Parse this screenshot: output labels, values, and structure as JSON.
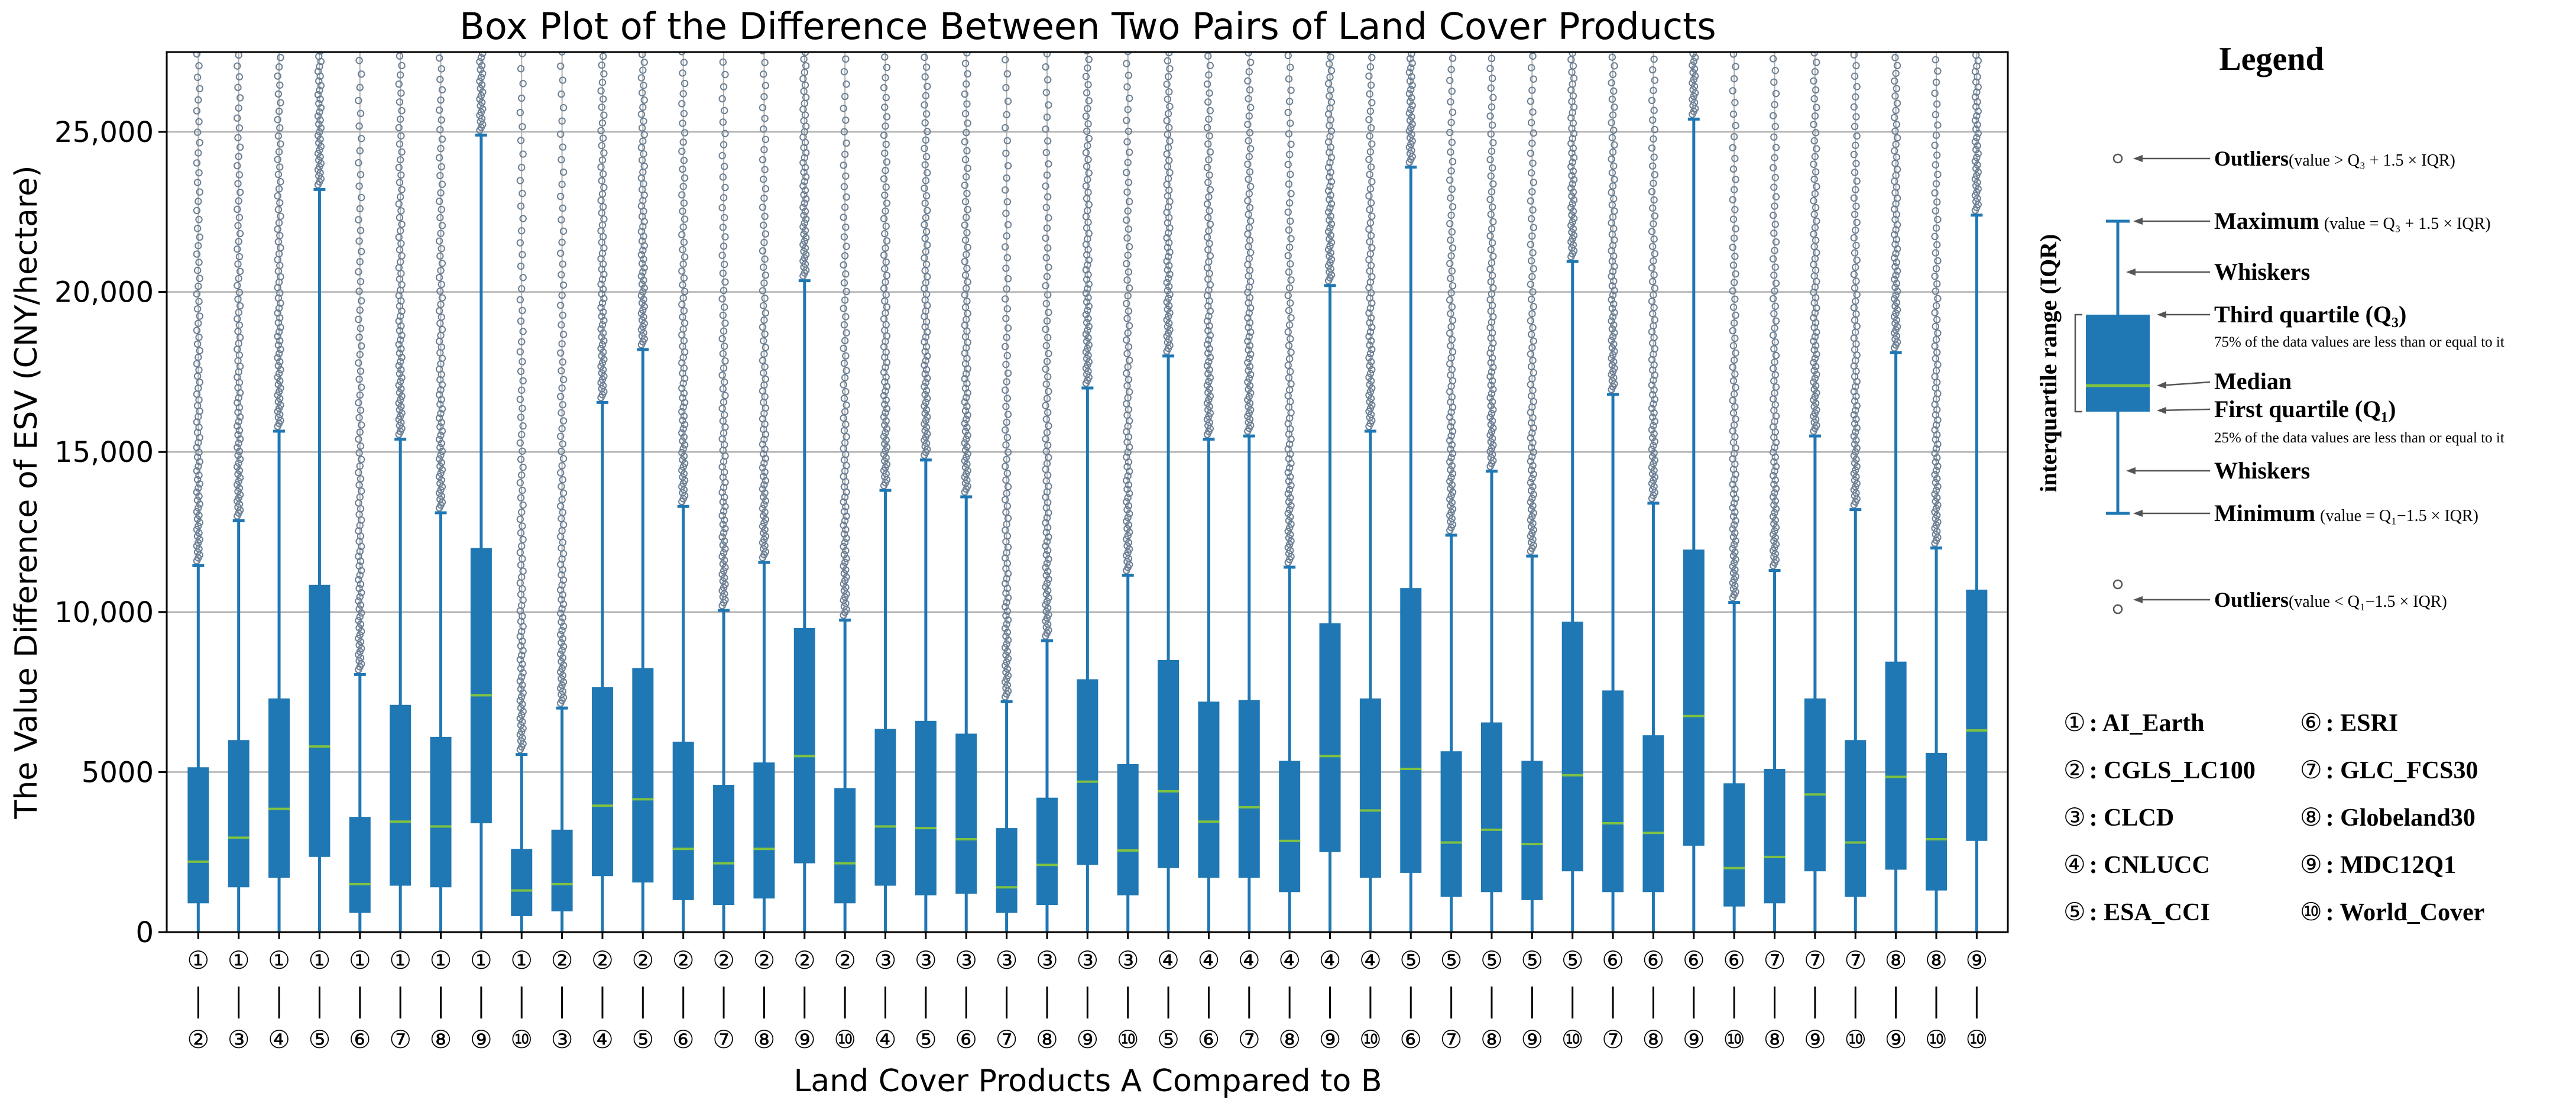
{
  "chart_data": {
    "type": "box",
    "title": "Box Plot of the Difference Between Two Pairs of Land Cover Products",
    "xlabel": "Land Cover Products A Compared to B",
    "ylabel": "The Value Difference of ESV  (CNY/hectare)",
    "ylim": [
      0,
      27500
    ],
    "yticks": [
      {
        "value": 0,
        "label": "0"
      },
      {
        "value": 5000,
        "label": "5000"
      },
      {
        "value": 10000,
        "label": "10,000"
      },
      {
        "value": 15000,
        "label": "15,000"
      },
      {
        "value": 20000,
        "label": "20,000"
      },
      {
        "value": 25000,
        "label": "25,000"
      }
    ],
    "grid": true,
    "colors": {
      "box": "#1f77b4",
      "median": "#7fc241",
      "outlier": "#6b7f94",
      "grid": "#b0b0b0",
      "arrow": "#555555"
    },
    "boxes": [
      {
        "a": "①",
        "b": "②",
        "min": 0,
        "q1": 900,
        "median": 2200,
        "q3": 5150,
        "max": 11450
      },
      {
        "a": "①",
        "b": "③",
        "min": 0,
        "q1": 1400,
        "median": 2950,
        "q3": 6000,
        "max": 12850
      },
      {
        "a": "①",
        "b": "④",
        "min": 0,
        "q1": 1700,
        "median": 3850,
        "q3": 7300,
        "max": 15650
      },
      {
        "a": "①",
        "b": "⑤",
        "min": 0,
        "q1": 2350,
        "median": 5800,
        "q3": 10850,
        "max": 23200
      },
      {
        "a": "①",
        "b": "⑥",
        "min": 0,
        "q1": 600,
        "median": 1500,
        "q3": 3600,
        "max": 8050
      },
      {
        "a": "①",
        "b": "⑦",
        "min": 0,
        "q1": 1450,
        "median": 3450,
        "q3": 7100,
        "max": 15400
      },
      {
        "a": "①",
        "b": "⑧",
        "min": 0,
        "q1": 1400,
        "median": 3300,
        "q3": 6100,
        "max": 13100
      },
      {
        "a": "①",
        "b": "⑨",
        "min": 0,
        "q1": 3400,
        "median": 7400,
        "q3": 12000,
        "max": 24900
      },
      {
        "a": "①",
        "b": "⑩",
        "min": 0,
        "q1": 500,
        "median": 1300,
        "q3": 2600,
        "max": 5550
      },
      {
        "a": "②",
        "b": "③",
        "min": 0,
        "q1": 650,
        "median": 1500,
        "q3": 3200,
        "max": 7000
      },
      {
        "a": "②",
        "b": "④",
        "min": 0,
        "q1": 1750,
        "median": 3950,
        "q3": 7650,
        "max": 16550
      },
      {
        "a": "②",
        "b": "⑤",
        "min": 0,
        "q1": 1550,
        "median": 4150,
        "q3": 8250,
        "max": 18200
      },
      {
        "a": "②",
        "b": "⑥",
        "min": 0,
        "q1": 1000,
        "median": 2600,
        "q3": 5950,
        "max": 13300
      },
      {
        "a": "②",
        "b": "⑦",
        "min": 0,
        "q1": 850,
        "median": 2150,
        "q3": 4600,
        "max": 10050
      },
      {
        "a": "②",
        "b": "⑧",
        "min": 0,
        "q1": 1050,
        "median": 2600,
        "q3": 5300,
        "max": 11550
      },
      {
        "a": "②",
        "b": "⑨",
        "min": 0,
        "q1": 2150,
        "median": 5500,
        "q3": 9500,
        "max": 20350
      },
      {
        "a": "②",
        "b": "⑩",
        "min": 0,
        "q1": 900,
        "median": 2150,
        "q3": 4500,
        "max": 9750
      },
      {
        "a": "③",
        "b": "④",
        "min": 0,
        "q1": 1450,
        "median": 3300,
        "q3": 6350,
        "max": 13800
      },
      {
        "a": "③",
        "b": "⑤",
        "min": 0,
        "q1": 1150,
        "median": 3250,
        "q3": 6600,
        "max": 14750
      },
      {
        "a": "③",
        "b": "⑥",
        "min": 0,
        "q1": 1200,
        "median": 2900,
        "q3": 6200,
        "max": 13600
      },
      {
        "a": "③",
        "b": "⑦",
        "min": 0,
        "q1": 600,
        "median": 1400,
        "q3": 3250,
        "max": 7200
      },
      {
        "a": "③",
        "b": "⑧",
        "min": 0,
        "q1": 850,
        "median": 2100,
        "q3": 4200,
        "max": 9100
      },
      {
        "a": "③",
        "b": "⑨",
        "min": 0,
        "q1": 2100,
        "median": 4700,
        "q3": 7900,
        "max": 17000
      },
      {
        "a": "③",
        "b": "⑩",
        "min": 0,
        "q1": 1150,
        "median": 2550,
        "q3": 5250,
        "max": 11150
      },
      {
        "a": "④",
        "b": "⑤",
        "min": 0,
        "q1": 2000,
        "median": 4400,
        "q3": 8500,
        "max": 18000
      },
      {
        "a": "④",
        "b": "⑥",
        "min": 0,
        "q1": 1700,
        "median": 3450,
        "q3": 7200,
        "max": 15400
      },
      {
        "a": "④",
        "b": "⑦",
        "min": 0,
        "q1": 1700,
        "median": 3900,
        "q3": 7250,
        "max": 15500
      },
      {
        "a": "④",
        "b": "⑧",
        "min": 0,
        "q1": 1250,
        "median": 2850,
        "q3": 5350,
        "max": 11400
      },
      {
        "a": "④",
        "b": "⑨",
        "min": 0,
        "q1": 2500,
        "median": 5500,
        "q3": 9650,
        "max": 20200
      },
      {
        "a": "④",
        "b": "⑩",
        "min": 0,
        "q1": 1700,
        "median": 3800,
        "q3": 7300,
        "max": 15650
      },
      {
        "a": "⑤",
        "b": "⑥",
        "min": 0,
        "q1": 1850,
        "median": 5100,
        "q3": 10750,
        "max": 23900
      },
      {
        "a": "⑤",
        "b": "⑦",
        "min": 0,
        "q1": 1100,
        "median": 2800,
        "q3": 5650,
        "max": 12400
      },
      {
        "a": "⑤",
        "b": "⑧",
        "min": 0,
        "q1": 1250,
        "median": 3200,
        "q3": 6550,
        "max": 14400
      },
      {
        "a": "⑤",
        "b": "⑨",
        "min": 0,
        "q1": 1000,
        "median": 2750,
        "q3": 5350,
        "max": 11750
      },
      {
        "a": "⑤",
        "b": "⑩",
        "min": 0,
        "q1": 1900,
        "median": 4900,
        "q3": 9700,
        "max": 20950
      },
      {
        "a": "⑥",
        "b": "⑦",
        "min": 0,
        "q1": 1250,
        "median": 3400,
        "q3": 7550,
        "max": 16800
      },
      {
        "a": "⑥",
        "b": "⑧",
        "min": 0,
        "q1": 1250,
        "median": 3100,
        "q3": 6150,
        "max": 13400
      },
      {
        "a": "⑥",
        "b": "⑨",
        "min": 0,
        "q1": 2700,
        "median": 6750,
        "q3": 11950,
        "max": 25400
      },
      {
        "a": "⑥",
        "b": "⑩",
        "min": 0,
        "q1": 800,
        "median": 2000,
        "q3": 4650,
        "max": 10300
      },
      {
        "a": "⑦",
        "b": "⑧",
        "min": 0,
        "q1": 900,
        "median": 2350,
        "q3": 5100,
        "max": 11300
      },
      {
        "a": "⑦",
        "b": "⑨",
        "min": 0,
        "q1": 1900,
        "median": 4300,
        "q3": 7300,
        "max": 15500
      },
      {
        "a": "⑦",
        "b": "⑩",
        "min": 0,
        "q1": 1100,
        "median": 2800,
        "q3": 6000,
        "max": 13200
      },
      {
        "a": "⑧",
        "b": "⑨",
        "min": 0,
        "q1": 1950,
        "median": 4850,
        "q3": 8450,
        "max": 18100
      },
      {
        "a": "⑧",
        "b": "⑩",
        "min": 0,
        "q1": 1300,
        "median": 2900,
        "q3": 5600,
        "max": 12000
      },
      {
        "a": "⑨",
        "b": "⑩",
        "min": 0,
        "q1": 2850,
        "median": 6300,
        "q3": 10700,
        "max": 22400
      }
    ]
  },
  "legend": {
    "title": "Legend",
    "iqr_label": "interquartile range (IQR)",
    "outliers_high": {
      "label": "Outliers",
      "note": "(value > Q₃ + 1.5 × IQR)"
    },
    "maximum": {
      "label": "Maximum",
      "note": "(value = Q₃ + 1.5 × IQR)"
    },
    "whiskers_top": "Whiskers",
    "third_quartile": {
      "label": "Third quartile (Q₃)",
      "note": "75% of the data values are less than or equal to it"
    },
    "median": "Median",
    "first_quartile": {
      "label": "First quartile (Q₁)",
      "note": "25% of the data values are less than or equal to it"
    },
    "whiskers_bottom": "Whiskers",
    "minimum": {
      "label": "Minimum",
      "note": "(value = Q₁−1.5 × IQR)"
    },
    "outliers_low": {
      "label": "Outliers",
      "note": "(value < Q₁−1.5 × IQR)"
    },
    "products": [
      {
        "symbol": "①",
        "name": ": AI_Earth"
      },
      {
        "symbol": "②",
        "name": ": CGLS_LC100"
      },
      {
        "symbol": "③",
        "name": ": CLCD"
      },
      {
        "symbol": "④",
        "name": ": CNLUCC"
      },
      {
        "symbol": "⑤",
        "name": ": ESA_CCI"
      },
      {
        "symbol": "⑥",
        "name": ": ESRI"
      },
      {
        "symbol": "⑦",
        "name": ": GLC_FCS30"
      },
      {
        "symbol": "⑧",
        "name": ": Globeland30"
      },
      {
        "symbol": "⑨",
        "name": ": MDC12Q1"
      },
      {
        "symbol": "⑩",
        "name": ": World_Cover"
      }
    ]
  }
}
